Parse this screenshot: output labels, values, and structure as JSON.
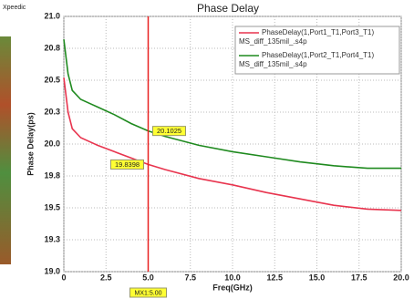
{
  "brand": "Xpeedic",
  "chart_data": {
    "type": "line",
    "title": "Phase Delay",
    "x_label": "Freq(GHz)",
    "y_label": "Phase Delay(ps)",
    "x": [
      0,
      0.25,
      0.5,
      1,
      1.5,
      2,
      3,
      4,
      5,
      6,
      8,
      10,
      12,
      14,
      16,
      18,
      20
    ],
    "series": [
      {
        "name": "PhaseDelay(1,Port1_T1,Port3_T1)",
        "source": "MS_diff_135mil_.s4p",
        "color": "#e8344e",
        "values": [
          20.52,
          20.25,
          20.12,
          20.05,
          20.02,
          19.99,
          19.94,
          19.89,
          19.8398,
          19.8,
          19.73,
          19.68,
          19.62,
          19.57,
          19.52,
          19.49,
          19.48
        ]
      },
      {
        "name": "PhaseDelay(1,Port2_T1,Port4_T1)",
        "source": "MS_diff_135mil_.s4p",
        "color": "#1f8a1f",
        "values": [
          20.82,
          20.55,
          20.42,
          20.35,
          20.32,
          20.29,
          20.23,
          20.16,
          20.1025,
          20.06,
          19.99,
          19.94,
          19.9,
          19.86,
          19.83,
          19.81,
          19.81
        ]
      }
    ],
    "xlim": [
      0,
      20
    ],
    "xticks": [
      0,
      2.5,
      {
        "value": 5,
        "label": "5.0"
      },
      7.5,
      {
        "value": 10,
        "label": "10.0"
      },
      12.5,
      {
        "value": 15,
        "label": "15.0"
      },
      17.5,
      {
        "value": 20,
        "label": "20.0"
      }
    ],
    "ylim": [
      19,
      21
    ],
    "yticks": [
      {
        "value": 19,
        "label": "19.0"
      },
      {
        "value": 19.25,
        "label": "19.3"
      },
      19.5,
      {
        "value": 19.75,
        "label": "19.8"
      },
      {
        "value": 20,
        "label": "20.0"
      },
      {
        "value": 20.25,
        "label": "20.3"
      },
      20.5,
      {
        "value": 20.75,
        "label": "20.8"
      },
      {
        "value": 21,
        "label": "21.0"
      }
    ],
    "grid": true,
    "marker": {
      "x": 5,
      "label": "MX1:5.00",
      "values": [
        19.8398,
        20.1025
      ],
      "color": "#e82020"
    }
  }
}
